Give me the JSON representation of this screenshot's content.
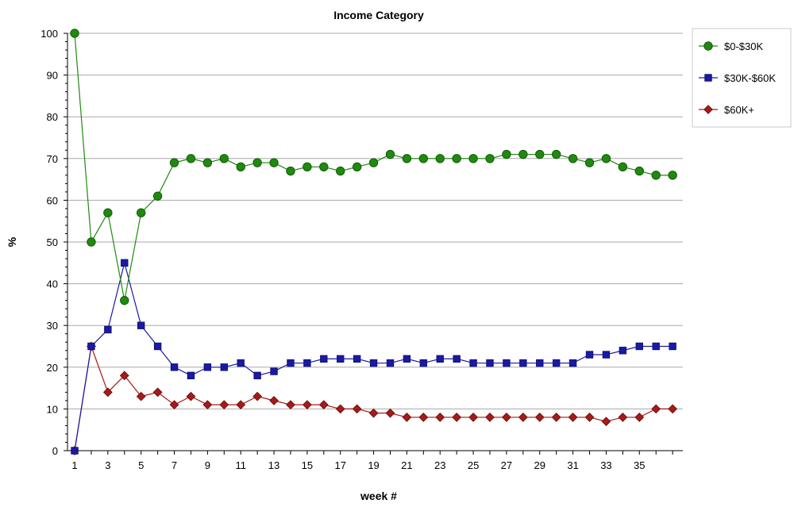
{
  "chart_data": {
    "type": "line",
    "title": "Income Category",
    "xlabel": "week #",
    "ylabel": "%",
    "ylim": [
      0,
      100
    ],
    "yticks": [
      0,
      10,
      20,
      30,
      40,
      50,
      60,
      70,
      80,
      90,
      100
    ],
    "xticks": [
      1,
      3,
      5,
      7,
      9,
      11,
      13,
      15,
      17,
      19,
      21,
      23,
      25,
      27,
      29,
      31,
      33,
      35
    ],
    "x": [
      1,
      2,
      3,
      4,
      5,
      6,
      7,
      8,
      9,
      10,
      11,
      12,
      13,
      14,
      15,
      16,
      17,
      18,
      19,
      20,
      21,
      22,
      23,
      24,
      25,
      26,
      27,
      28,
      29,
      30,
      31,
      32,
      33,
      34,
      35,
      36,
      37
    ],
    "grid": true,
    "legend_position": "top-right",
    "series": [
      {
        "name": "$0-$30K",
        "color": "#1f8a0f",
        "marker": "circle",
        "values": [
          100,
          50,
          57,
          36,
          57,
          61,
          69,
          70,
          69,
          70,
          68,
          69,
          69,
          67,
          68,
          68,
          67,
          68,
          69,
          71,
          70,
          70,
          70,
          70,
          70,
          70,
          71,
          71,
          71,
          71,
          70,
          69,
          70,
          68,
          67,
          66,
          66
        ]
      },
      {
        "name": "$30K-$60K",
        "color": "#1a1aa8",
        "marker": "square",
        "values": [
          0,
          25,
          29,
          45,
          30,
          25,
          20,
          18,
          20,
          20,
          21,
          18,
          19,
          21,
          21,
          22,
          22,
          22,
          21,
          21,
          22,
          21,
          22,
          22,
          21,
          21,
          21,
          21,
          21,
          21,
          21,
          23,
          23,
          24,
          25,
          25,
          25
        ]
      },
      {
        "name": "$60K+",
        "color": "#a81a1a",
        "marker": "diamond",
        "values": [
          0,
          25,
          14,
          18,
          13,
          14,
          11,
          13,
          11,
          11,
          11,
          13,
          12,
          11,
          11,
          11,
          10,
          10,
          9,
          9,
          8,
          8,
          8,
          8,
          8,
          8,
          8,
          8,
          8,
          8,
          8,
          8,
          7,
          8,
          8,
          10,
          10
        ]
      }
    ]
  }
}
